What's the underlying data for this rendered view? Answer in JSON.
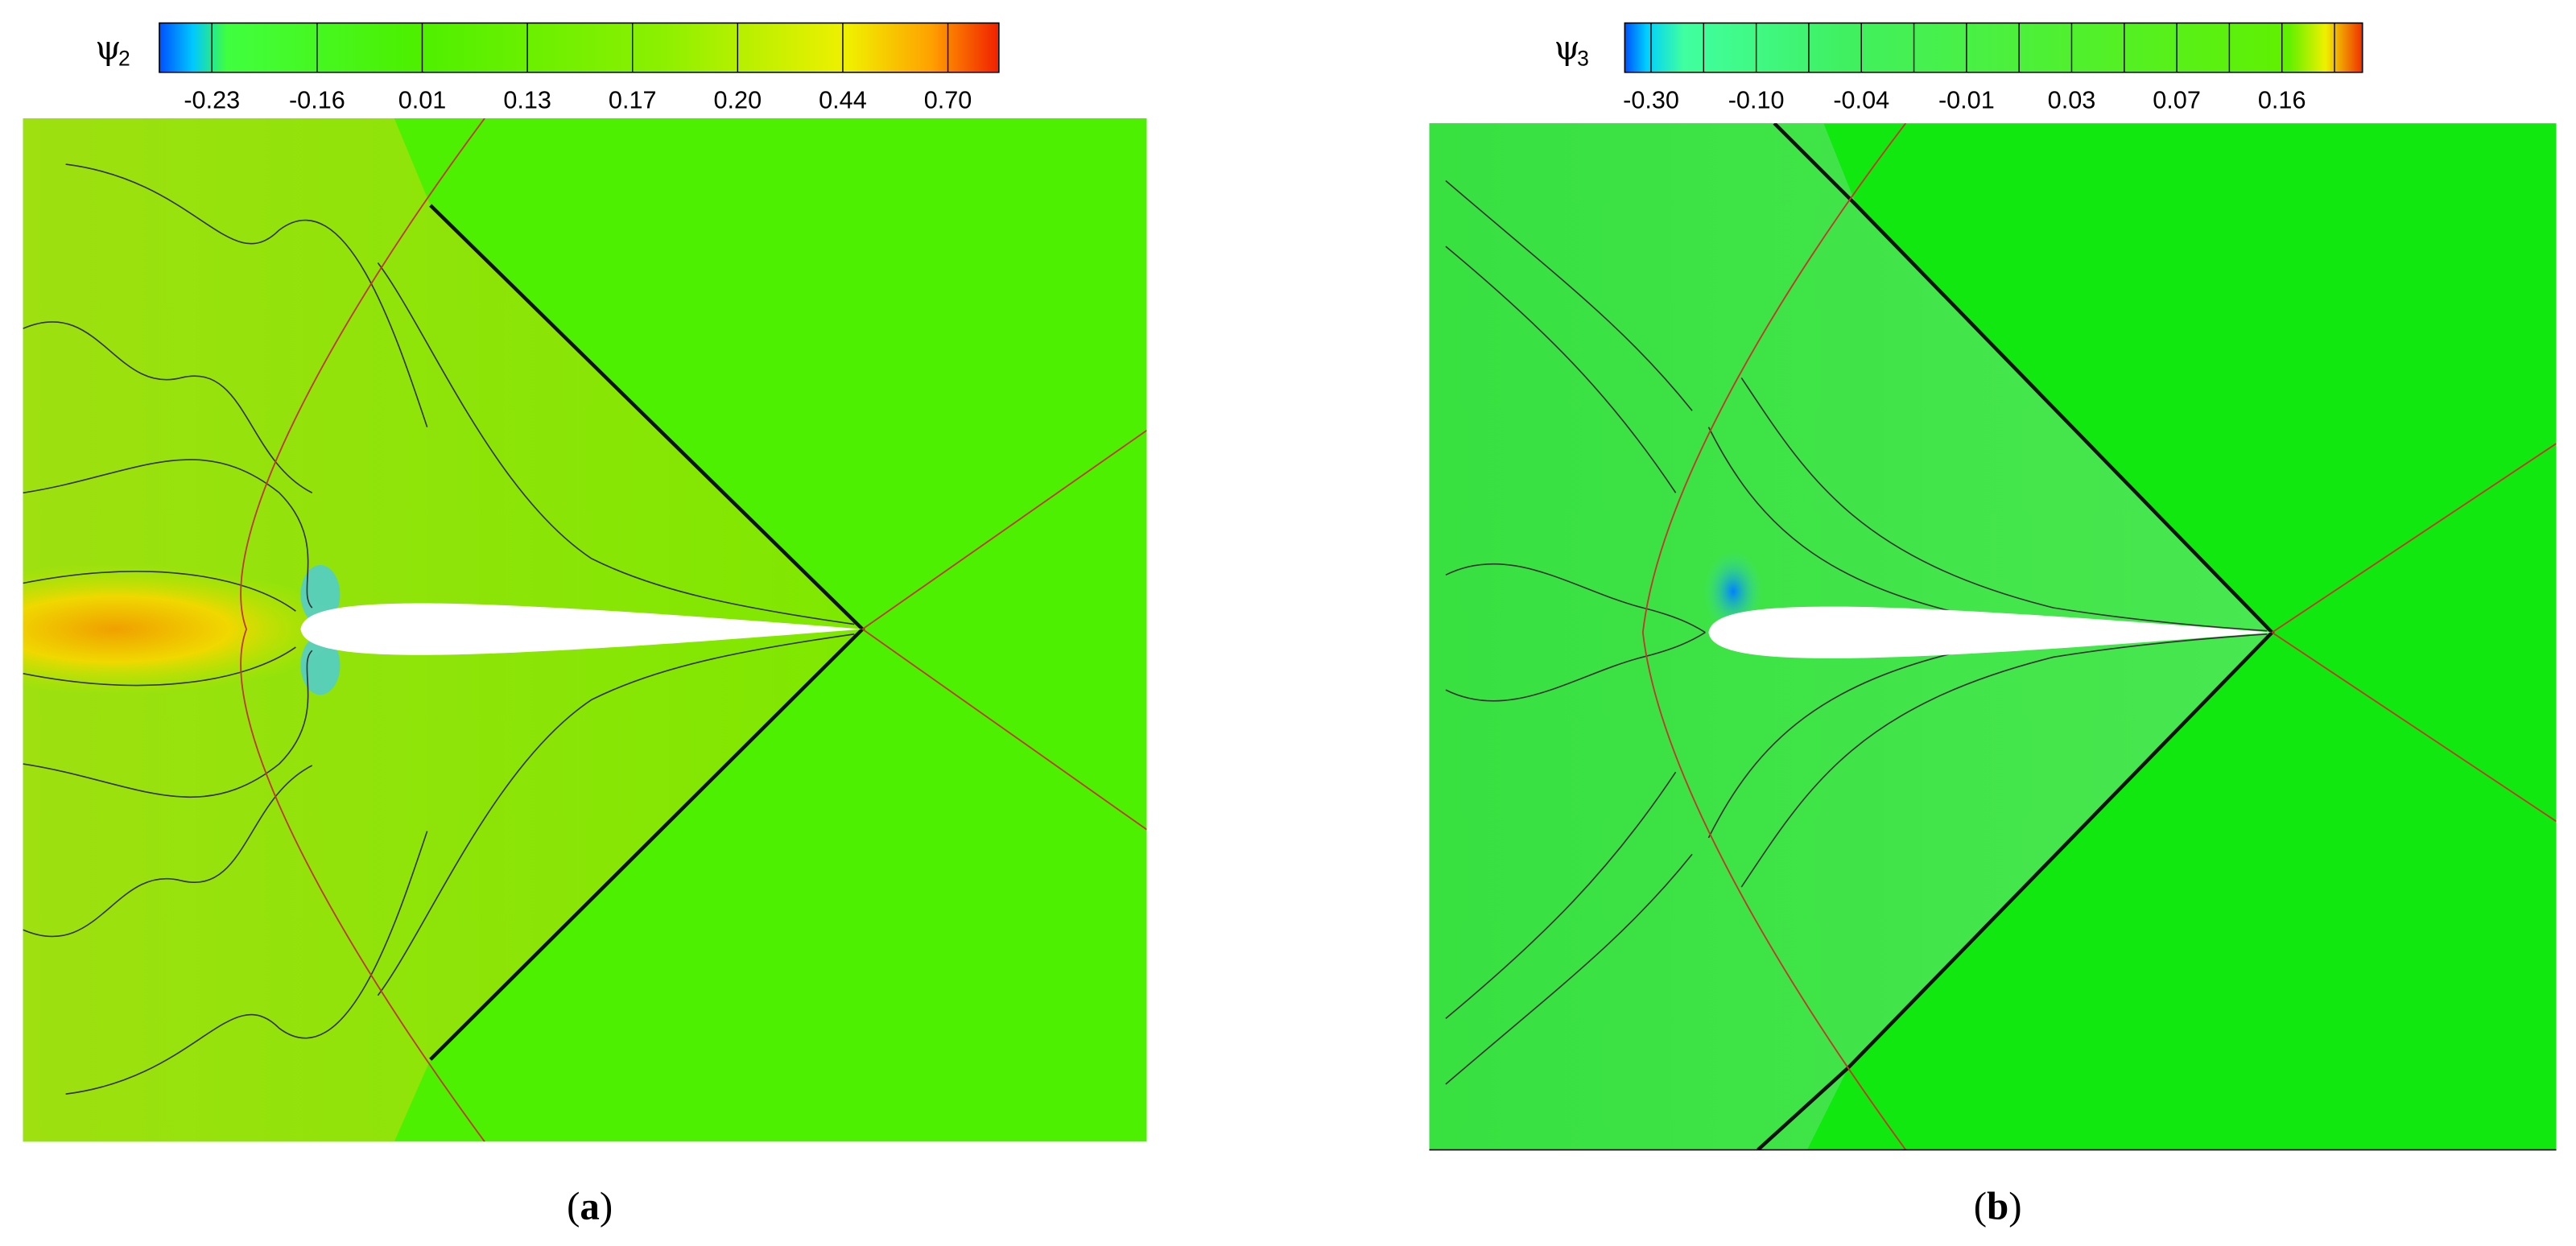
{
  "panels": [
    {
      "symbol": "ψ",
      "subscript": "2",
      "colorbar_ticks": [
        "-0.23",
        "-0.16",
        "0.01",
        "0.13",
        "0.17",
        "0.20",
        "0.44",
        "0.70"
      ],
      "caption": {
        "open": "(",
        "letter": "a",
        "close": ")"
      }
    },
    {
      "symbol": "ψ",
      "subscript": "3",
      "colorbar_ticks": [
        "-0.30",
        "-0.10",
        "-0.04",
        "-0.01",
        "0.03",
        "0.07",
        "0.16"
      ],
      "caption": {
        "open": "(",
        "letter": "b",
        "close": ")"
      }
    }
  ]
}
